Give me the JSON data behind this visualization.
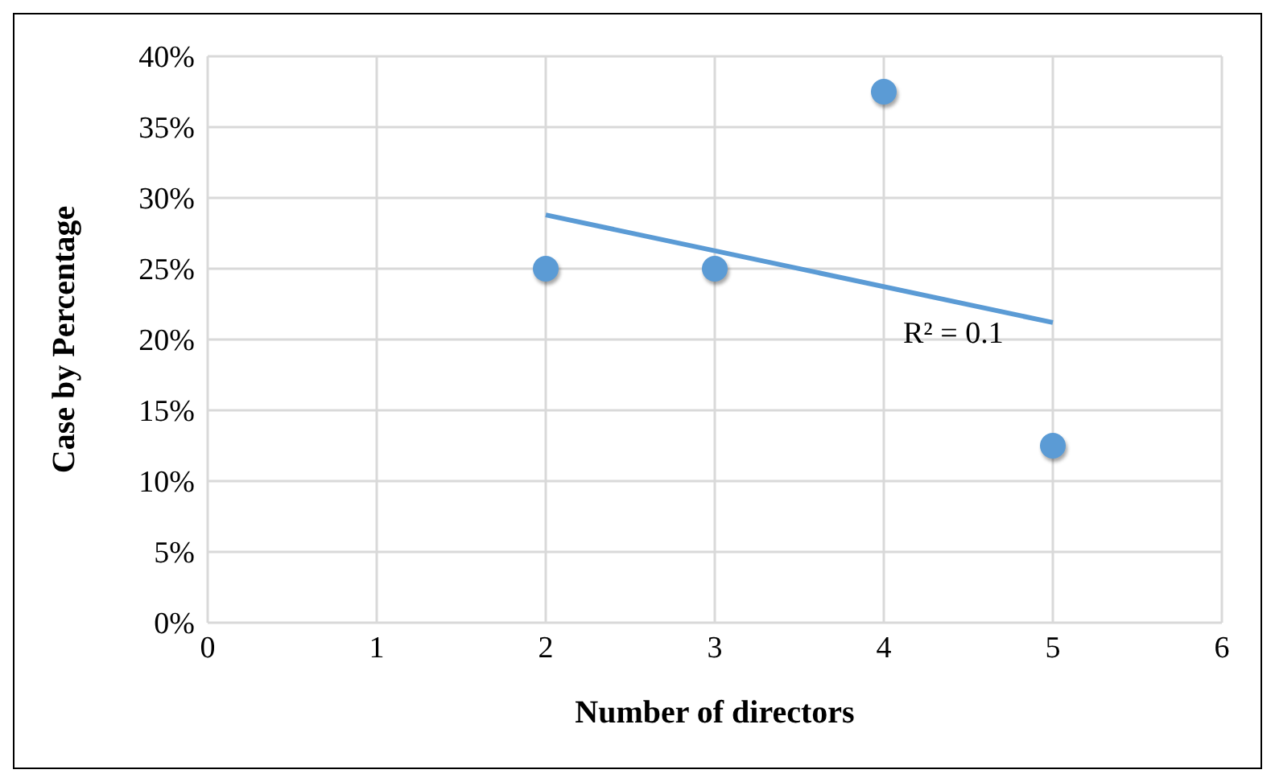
{
  "chart_data": {
    "type": "scatter",
    "xlabel": "Number of directors",
    "ylabel": "Case by Percentage",
    "xlim": [
      0,
      6
    ],
    "xticks": [
      0,
      1,
      2,
      3,
      4,
      5,
      6
    ],
    "ylim": [
      0,
      40
    ],
    "yticks": [
      {
        "value": 0,
        "label": "0%"
      },
      {
        "value": 5,
        "label": "5%"
      },
      {
        "value": 10,
        "label": "10%"
      },
      {
        "value": 15,
        "label": "15%"
      },
      {
        "value": 20,
        "label": "20%"
      },
      {
        "value": 25,
        "label": "25%"
      },
      {
        "value": 30,
        "label": "30%"
      },
      {
        "value": 35,
        "label": "35%"
      },
      {
        "value": 40,
        "label": "40%"
      }
    ],
    "grid": true,
    "series": [
      {
        "color": "#5b9bd5",
        "marker": "circle",
        "x": [
          2,
          3,
          4,
          5
        ],
        "values": [
          25,
          25,
          37.5,
          12.5
        ]
      },
      {
        "type": "line",
        "color": "#5b9bd5",
        "marker": "none",
        "x": [
          2,
          5
        ],
        "values": [
          28.8,
          21.2
        ]
      }
    ],
    "annotations": [
      "R² = 0.1"
    ]
  }
}
